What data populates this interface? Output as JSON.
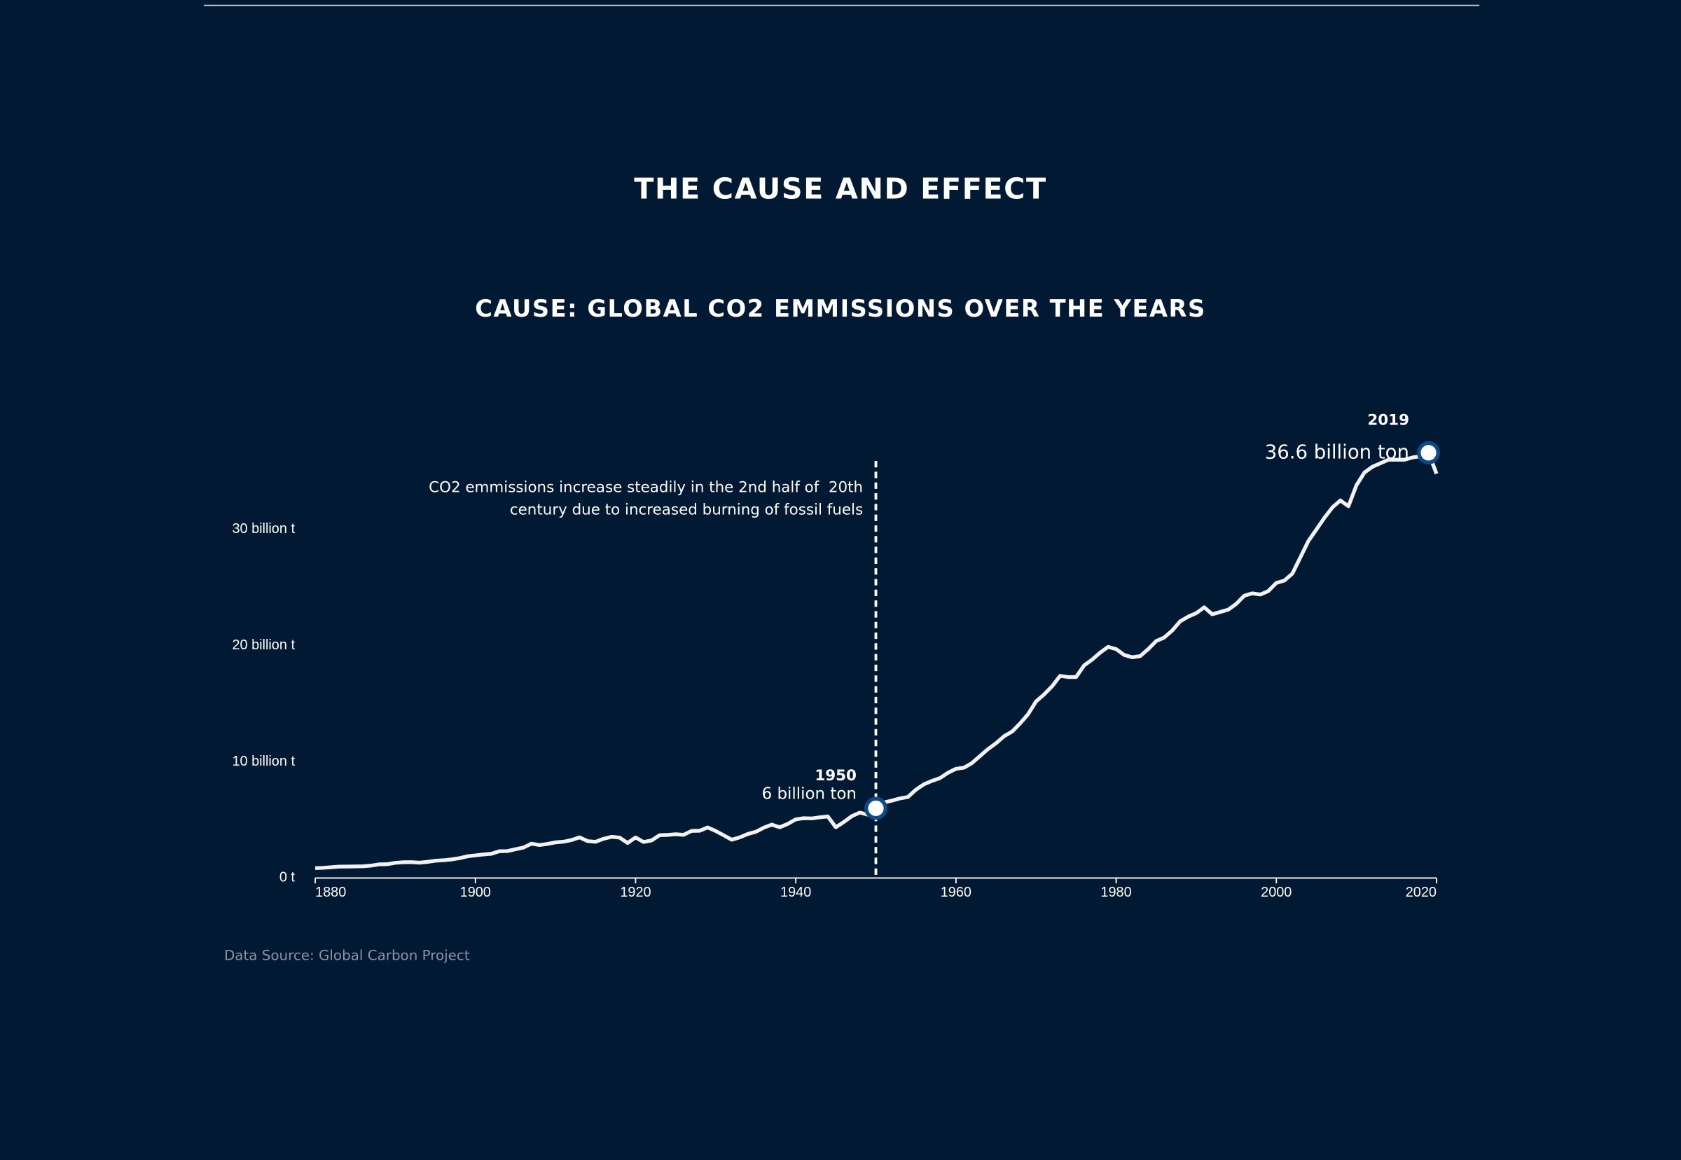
{
  "page_title": "THE CAUSE AND EFFECT",
  "chart_data": {
    "type": "line",
    "title": "CAUSE: GLOBAL CO2 EMMISSIONS OVER THE YEARS",
    "source": "Data Source: Global Carbon Project",
    "x": [
      1880,
      1881,
      1882,
      1883,
      1884,
      1885,
      1886,
      1887,
      1888,
      1889,
      1890,
      1891,
      1892,
      1893,
      1894,
      1895,
      1896,
      1897,
      1898,
      1899,
      1900,
      1901,
      1902,
      1903,
      1904,
      1905,
      1906,
      1907,
      1908,
      1909,
      1910,
      1911,
      1912,
      1913,
      1914,
      1915,
      1916,
      1917,
      1918,
      1919,
      1920,
      1921,
      1922,
      1923,
      1924,
      1925,
      1926,
      1927,
      1928,
      1929,
      1930,
      1931,
      1932,
      1933,
      1934,
      1935,
      1936,
      1937,
      1938,
      1939,
      1940,
      1941,
      1942,
      1943,
      1944,
      1945,
      1946,
      1947,
      1948,
      1949,
      1950,
      1951,
      1952,
      1953,
      1954,
      1955,
      1956,
      1957,
      1958,
      1959,
      1960,
      1961,
      1962,
      1963,
      1964,
      1965,
      1966,
      1967,
      1968,
      1969,
      1970,
      1971,
      1972,
      1973,
      1974,
      1975,
      1976,
      1977,
      1978,
      1979,
      1980,
      1981,
      1982,
      1983,
      1984,
      1985,
      1986,
      1987,
      1988,
      1989,
      1990,
      1991,
      1992,
      1993,
      1994,
      1995,
      1996,
      1997,
      1998,
      1999,
      2000,
      2001,
      2002,
      2003,
      2004,
      2005,
      2006,
      2007,
      2008,
      2009,
      2010,
      2011,
      2012,
      2013,
      2014,
      2015,
      2016,
      2017,
      2018,
      2019,
      2020
    ],
    "values": [
      0.85,
      0.88,
      0.93,
      0.98,
      0.99,
      1.0,
      1.01,
      1.07,
      1.18,
      1.19,
      1.31,
      1.36,
      1.37,
      1.32,
      1.39,
      1.49,
      1.53,
      1.6,
      1.71,
      1.87,
      1.95,
      2.03,
      2.09,
      2.31,
      2.32,
      2.48,
      2.62,
      2.96,
      2.84,
      2.94,
      3.07,
      3.13,
      3.27,
      3.5,
      3.18,
      3.12,
      3.38,
      3.55,
      3.48,
      3.02,
      3.49,
      3.1,
      3.24,
      3.69,
      3.71,
      3.77,
      3.72,
      4.06,
      4.07,
      4.36,
      4.05,
      3.68,
      3.3,
      3.5,
      3.79,
      3.98,
      4.33,
      4.6,
      4.37,
      4.66,
      5.05,
      5.15,
      5.13,
      5.23,
      5.3,
      4.37,
      4.82,
      5.33,
      5.63,
      5.45,
      6.0,
      6.5,
      6.66,
      6.85,
      6.98,
      7.6,
      8.07,
      8.36,
      8.6,
      9.06,
      9.4,
      9.5,
      9.9,
      10.5,
      11.1,
      11.6,
      12.2,
      12.6,
      13.3,
      14.1,
      15.2,
      15.8,
      16.5,
      17.4,
      17.3,
      17.3,
      18.3,
      18.8,
      19.4,
      19.9,
      19.7,
      19.2,
      19.0,
      19.1,
      19.7,
      20.4,
      20.7,
      21.3,
      22.1,
      22.5,
      22.8,
      23.3,
      22.7,
      22.9,
      23.1,
      23.6,
      24.3,
      24.5,
      24.4,
      24.7,
      25.4,
      25.6,
      26.2,
      27.6,
      29.0,
      30.0,
      31.0,
      31.9,
      32.5,
      32.0,
      33.8,
      34.9,
      35.4,
      35.7,
      36.0,
      36.0,
      36.0,
      36.2,
      36.3,
      36.6,
      34.8
    ],
    "color": "#f2f2f2",
    "xlim": [
      1880,
      2020
    ],
    "xticks": [
      1880,
      1900,
      1920,
      1940,
      1960,
      1980,
      2000,
      2020
    ],
    "ylim": [
      0,
      37
    ],
    "yticks": [
      {
        "value": 0,
        "label": "0 t"
      },
      {
        "value": 10,
        "label": "10 billion t"
      },
      {
        "value": 20,
        "label": "20 billion t"
      },
      {
        "value": 30,
        "label": "30 billion t"
      }
    ],
    "marker_line_x": 1950,
    "note": [
      "CO2 emmissions increase steadily in the 2nd half of  20th",
      "century due to increased burning of fossil fuels"
    ],
    "annotations": [
      {
        "index": 70,
        "x": 1950,
        "label": "6 billion ton"
      },
      {
        "index": 139,
        "x": 2019,
        "label": "36.6 billion ton"
      }
    ]
  }
}
